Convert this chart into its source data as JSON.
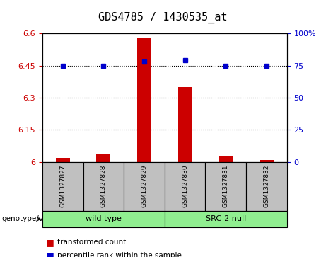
{
  "title": "GDS4785 / 1430535_at",
  "samples": [
    "GSM1327827",
    "GSM1327828",
    "GSM1327829",
    "GSM1327830",
    "GSM1327831",
    "GSM1327832"
  ],
  "red_values": [
    6.02,
    6.04,
    6.58,
    6.35,
    6.03,
    6.01
  ],
  "blue_values": [
    75,
    75,
    78,
    79,
    75,
    75
  ],
  "ylim_left": [
    6.0,
    6.6
  ],
  "ylim_right": [
    0,
    100
  ],
  "yticks_left": [
    6.0,
    6.15,
    6.3,
    6.45,
    6.6
  ],
  "yticks_right": [
    0,
    25,
    50,
    75,
    100
  ],
  "ytick_labels_left": [
    "6",
    "6.15",
    "6.3",
    "6.45",
    "6.6"
  ],
  "ytick_labels_right": [
    "0",
    "25",
    "50",
    "75",
    "100%"
  ],
  "group_box_color": "#C0C0C0",
  "group_configs": [
    {
      "indices": [
        0,
        1,
        2
      ],
      "label": "wild type",
      "color": "#90EE90"
    },
    {
      "indices": [
        3,
        4,
        5
      ],
      "label": "SRC-2 null",
      "color": "#90EE90"
    }
  ],
  "legend_red_label": "transformed count",
  "legend_blue_label": "percentile rank within the sample",
  "genotype_label": "genotype/variation",
  "bar_color": "#CC0000",
  "dot_color": "#0000CC",
  "dotted_line_values": [
    6.15,
    6.3,
    6.45
  ]
}
